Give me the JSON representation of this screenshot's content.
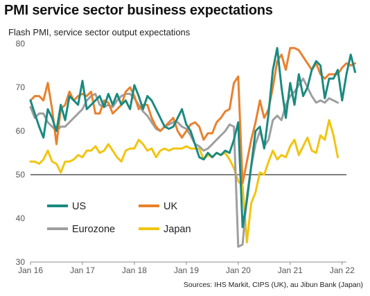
{
  "title": "PMI service sector business expectations",
  "subtitle": "Flash PMI, service sector output expectations",
  "source": "Sources: IHS Markit, CIPS (UK), au Jibun Bank (Japan)",
  "colors": {
    "US": "#1a8a80",
    "UK": "#e8812e",
    "Eurozone": "#9e9e9e",
    "Japan": "#f2c40f",
    "reference_line": "#333333"
  },
  "chart_data": {
    "type": "line",
    "title": "PMI service sector business expectations",
    "subtitle": "Flash PMI, service sector output expectations",
    "xlabel": "",
    "ylabel": "",
    "ylim": [
      30,
      80
    ],
    "yticks": [
      30,
      40,
      50,
      60,
      70,
      80
    ],
    "xlim": [
      "2016-01",
      "2022-02"
    ],
    "xticks": [
      "Jan 16",
      "Jan 17",
      "Jan 18",
      "Jan 19",
      "Jan 20",
      "Jan 21",
      "Jan 22"
    ],
    "reference_line": 50,
    "grid": false,
    "legend": {
      "placement": "lower-left",
      "entries": [
        "US",
        "UK",
        "Eurozone",
        "Japan"
      ]
    },
    "x_start": "2016-01",
    "series": [
      {
        "name": "US",
        "values": [
          67.0,
          64.0,
          61.0,
          58.5,
          65.0,
          63.0,
          60.0,
          66.0,
          62.5,
          68.0,
          67.0,
          66.0,
          71.5,
          65.0,
          66.0,
          67.0,
          68.0,
          65.5,
          68.5,
          66.0,
          68.5,
          66.0,
          67.0,
          65.0,
          70.5,
          68.0,
          65.0,
          68.0,
          67.0,
          65.0,
          63.0,
          61.0,
          60.5,
          61.0,
          63.0,
          65.0,
          61.5,
          60.0,
          57.0,
          54.0,
          53.5,
          55.0,
          54.0,
          55.0,
          54.5,
          55.5,
          55.0,
          58.0,
          62.0,
          38.0,
          44.0,
          52.0,
          60.0,
          61.0,
          56.0,
          64.0,
          74.0,
          79.0,
          70.0,
          63.0,
          71.0,
          66.0,
          73.0,
          68.0,
          70.0,
          74.0,
          76.0,
          75.0,
          67.5,
          72.0,
          72.0,
          74.0,
          67.0,
          73.0,
          77.5,
          73.5
        ]
      },
      {
        "name": "UK",
        "values": [
          67.0,
          68.0,
          68.0,
          67.0,
          71.0,
          65.0,
          57.0,
          65.0,
          66.0,
          69.0,
          67.0,
          68.0,
          68.5,
          68.0,
          69.0,
          64.0,
          64.0,
          67.0,
          66.5,
          64.0,
          65.0,
          66.0,
          69.0,
          70.0,
          68.0,
          65.0,
          66.0,
          66.0,
          63.0,
          61.0,
          60.0,
          61.0,
          62.0,
          63.0,
          60.0,
          58.5,
          60.0,
          61.5,
          62.0,
          61.0,
          58.0,
          59.5,
          59.5,
          62.0,
          63.0,
          64.5,
          65.0,
          71.0,
          72.5,
          48.0,
          53.0,
          58.0,
          62.0,
          67.0,
          63.0,
          65.0,
          70.0,
          76.0,
          77.5,
          74.0,
          79.0,
          79.0,
          78.5,
          77.0,
          75.5,
          74.0,
          75.5,
          73.0,
          72.0,
          73.0,
          73.0,
          73.0,
          74.5,
          75.5,
          75.0,
          75.5
        ]
      },
      {
        "name": "Eurozone",
        "values": [
          65.5,
          63.0,
          64.0,
          64.0,
          62.0,
          61.0,
          60.0,
          61.0,
          61.0,
          62.0,
          63.0,
          64.0,
          65.0,
          67.0,
          68.0,
          68.5,
          66.0,
          65.5,
          66.0,
          65.5,
          67.0,
          68.0,
          68.5,
          68.5,
          67.5,
          66.0,
          64.5,
          63.5,
          62.0,
          60.5,
          60.0,
          61.0,
          61.5,
          62.0,
          62.0,
          61.0,
          60.5,
          59.0,
          57.0,
          56.5,
          55.5,
          56.0,
          57.0,
          58.0,
          59.0,
          60.0,
          61.5,
          61.0,
          33.5,
          34.0,
          45.0,
          52.0,
          57.0,
          60.0,
          56.5,
          58.0,
          62.5,
          63.5,
          62.5,
          66.0,
          68.0,
          69.0,
          70.5,
          72.0,
          70.0,
          68.0,
          66.5,
          67.0,
          66.5,
          67.5,
          67.0,
          66.5
        ]
      },
      {
        "name": "Japan",
        "values": [
          53.0,
          53.0,
          52.5,
          53.5,
          55.5,
          53.0,
          52.5,
          50.5,
          53.0,
          53.0,
          53.5,
          54.5,
          54.0,
          55.5,
          55.5,
          56.5,
          55.0,
          55.5,
          57.0,
          55.5,
          54.0,
          53.0,
          55.5,
          56.0,
          56.0,
          58.0,
          57.0,
          55.5,
          56.0,
          54.0,
          55.5,
          56.0,
          55.5,
          56.0,
          56.0,
          56.0,
          56.5,
          56.0,
          56.0,
          56.0,
          53.5,
          54.5,
          54.0,
          55.0,
          54.5,
          55.0,
          53.5,
          51.5,
          48.5,
          47.5,
          34.5,
          43.5,
          46.0,
          50.5,
          50.0,
          53.0,
          55.5,
          53.5,
          54.5,
          54.0,
          56.5,
          58.0,
          54.5,
          56.5,
          58.5,
          55.5,
          55.0,
          59.0,
          58.0,
          62.5,
          59.0,
          54.0
        ]
      }
    ]
  }
}
